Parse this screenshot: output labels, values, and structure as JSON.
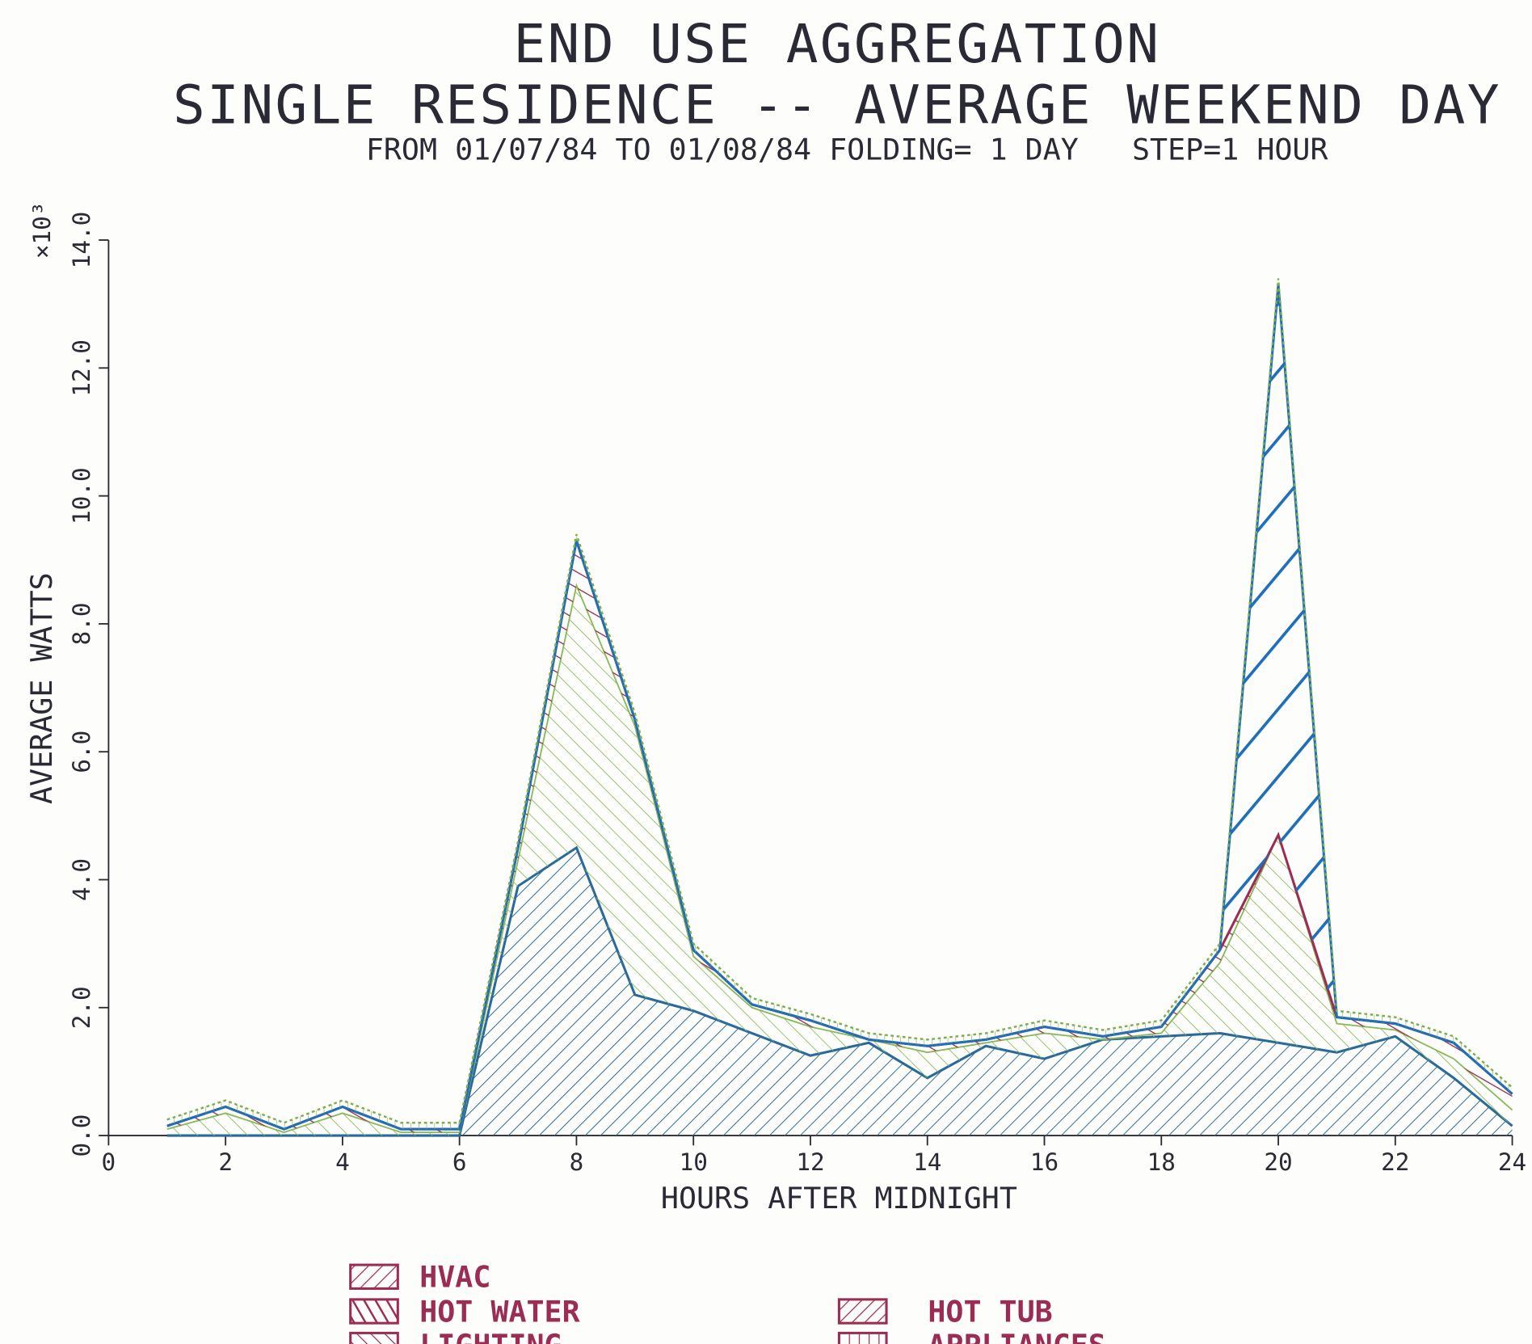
{
  "chart_data": {
    "type": "stacked_area",
    "title": "END USE AGGREGATION",
    "subtitle": "SINGLE RESIDENCE -- AVERAGE WEEKEND DAY",
    "caption": "FROM 01/07/84 TO 01/08/84 FOLDING= 1 DAY   STEP=1 HOUR",
    "x_label": "HOURS AFTER MIDNIGHT",
    "y_label": "AVERAGE WATTS",
    "y_multiplier": "×10³",
    "x": [
      1,
      2,
      3,
      4,
      5,
      6,
      7,
      8,
      9,
      10,
      11,
      12,
      13,
      14,
      15,
      16,
      17,
      18,
      19,
      20,
      21,
      22,
      23,
      24
    ],
    "xlim": [
      0,
      24
    ],
    "xticks": [
      0,
      2,
      4,
      6,
      8,
      10,
      12,
      14,
      16,
      18,
      20,
      22,
      24
    ],
    "ylim": [
      0,
      14
    ],
    "yticks": [
      {
        "value": 0,
        "label": "0.0"
      },
      {
        "value": 2,
        "label": "2.0"
      },
      {
        "value": 4,
        "label": "4.0"
      },
      {
        "value": 6,
        "label": "6.0"
      },
      {
        "value": 8,
        "label": "8.0"
      },
      {
        "value": 10,
        "label": "10.0"
      },
      {
        "value": 12,
        "label": "12.0"
      },
      {
        "value": 14,
        "label": "14.0"
      }
    ],
    "series": [
      {
        "name": "HVAC",
        "color": "#2a6a9a",
        "values": [
          0,
          0,
          0,
          0,
          0,
          0,
          3.9,
          4.5,
          2.2,
          1.95,
          1.6,
          1.25,
          1.45,
          0.9,
          1.4,
          1.2,
          1.5,
          1.55,
          1.6,
          1.45,
          1.3,
          1.55,
          0.9,
          0.15
        ]
      },
      {
        "name": "LIGHTING",
        "color": "#8ab85a",
        "values": [
          0.1,
          0.35,
          0.05,
          0.35,
          0.05,
          0.05,
          0.4,
          4.1,
          4.2,
          0.85,
          0.4,
          0.45,
          0.05,
          0.4,
          0.05,
          0.4,
          0.0,
          0.05,
          1.1,
          3.25,
          0.45,
          0.1,
          0.3,
          0.25
        ]
      },
      {
        "name": "HOT WATER",
        "color": "#9b2d55",
        "values": [
          0.05,
          0.1,
          0.05,
          0.1,
          0.05,
          0.05,
          0.2,
          0.7,
          0.1,
          0.1,
          0.05,
          0.1,
          0.0,
          0.1,
          0.05,
          0.1,
          0.05,
          0.1,
          0.2,
          0.0,
          0.1,
          0.1,
          0.25,
          0.25
        ]
      },
      {
        "name": "HOT TUB",
        "color": "#1f6fb8",
        "values": [
          0,
          0,
          0,
          0,
          0,
          0,
          0,
          0,
          0,
          0,
          0,
          0,
          0,
          0,
          0,
          0,
          0,
          0,
          0,
          8.6,
          0,
          0,
          0,
          0
        ]
      },
      {
        "name": "APPLIANCES",
        "color": "#7fae4e",
        "values": [
          0.1,
          0.1,
          0.1,
          0.1,
          0.1,
          0.1,
          0.1,
          0.1,
          0.1,
          0.1,
          0.1,
          0.1,
          0.1,
          0.1,
          0.1,
          0.1,
          0.1,
          0.1,
          0.1,
          0.1,
          0.1,
          0.1,
          0.1,
          0.1
        ]
      }
    ]
  }
}
